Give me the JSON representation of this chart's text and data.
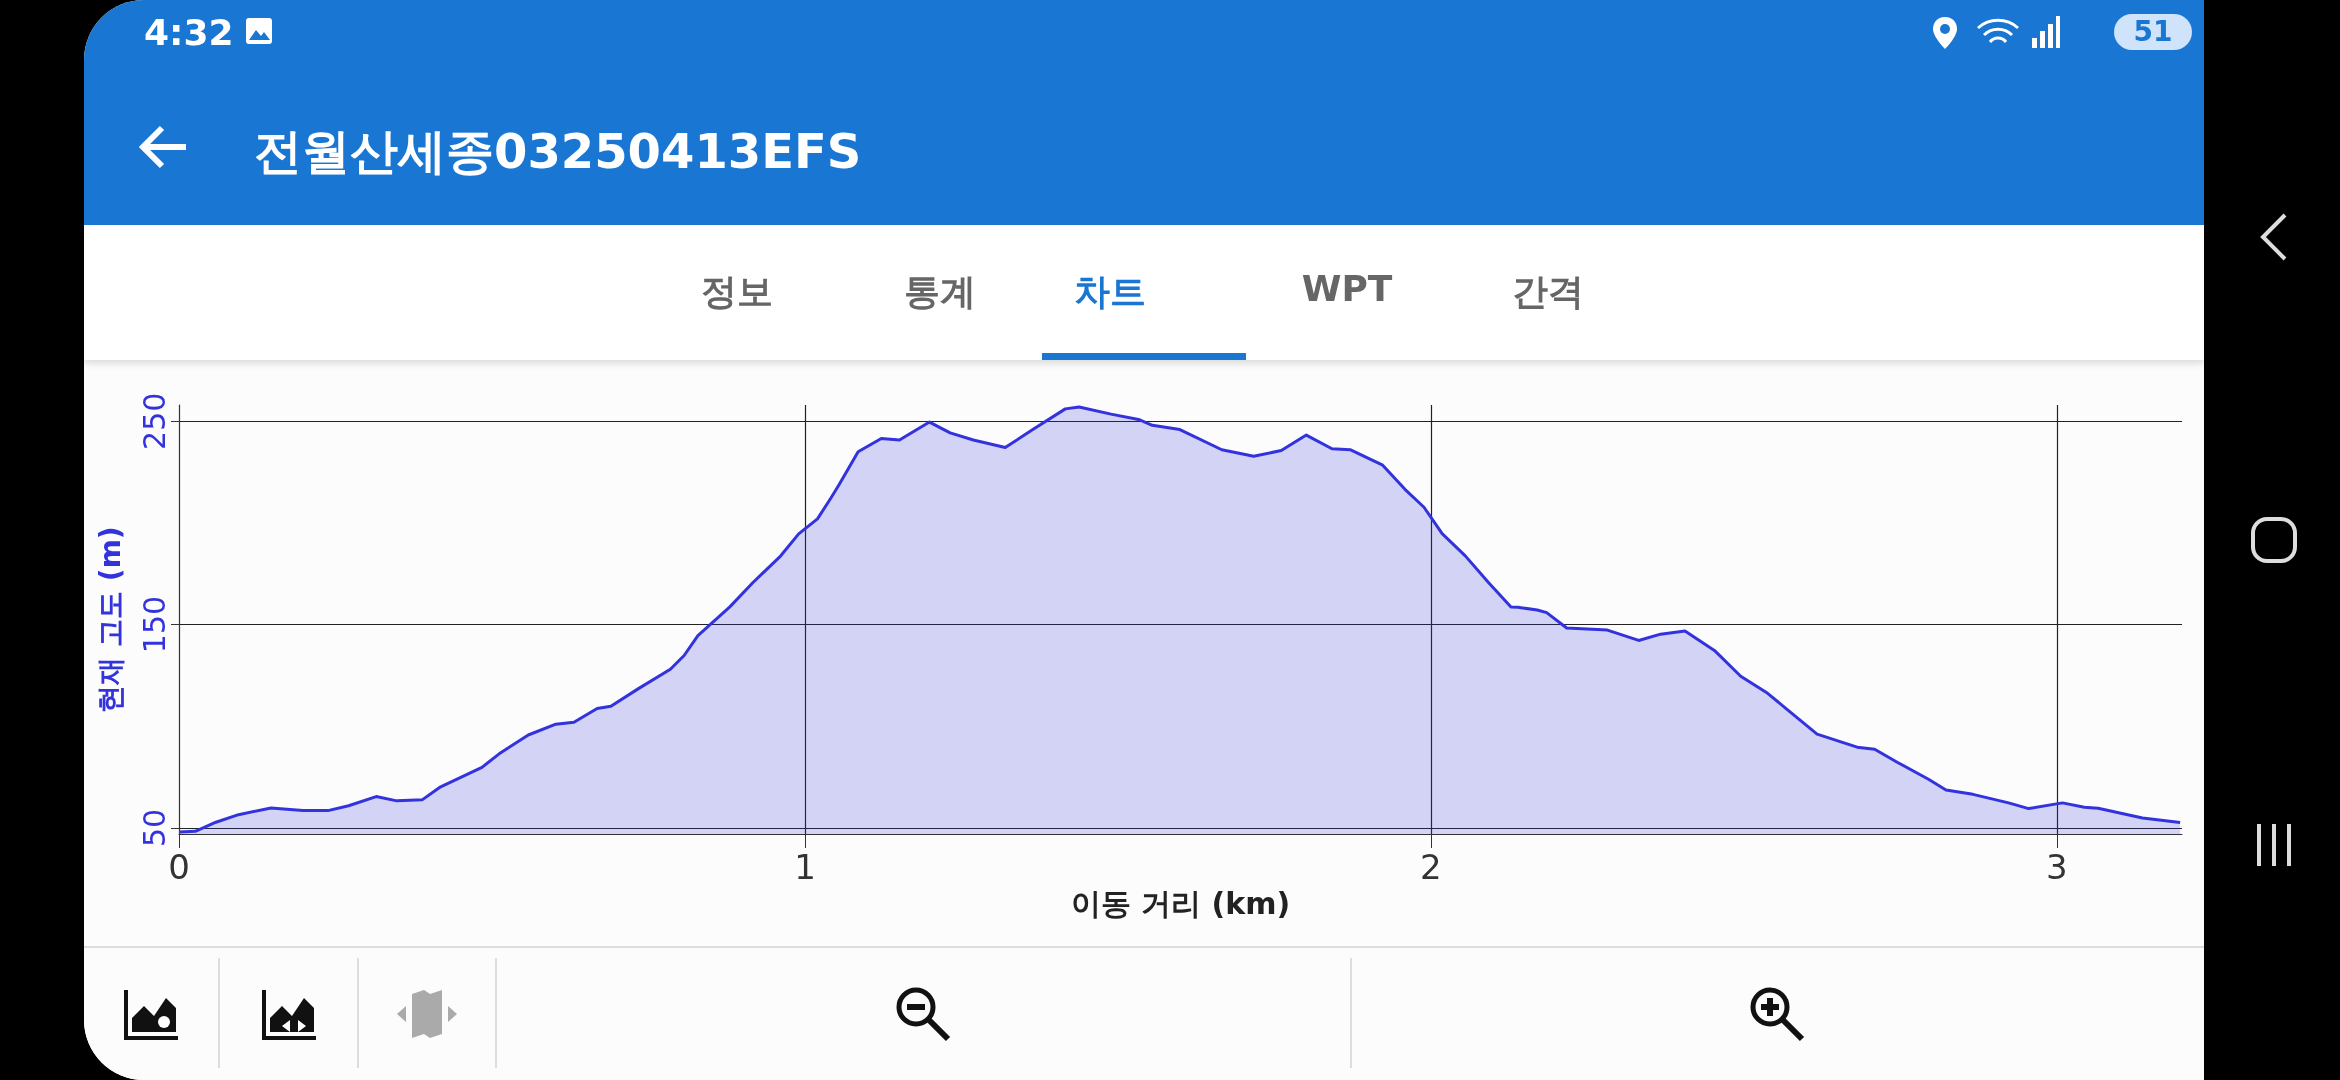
{
  "chart_data": {
    "type": "area",
    "title": "전월산세종03250413EFS",
    "annotations": [
      "4:32",
      "51",
      "정보",
      "통계",
      "차트",
      "WPT",
      "간격"
    ],
    "xlabel": "이동 거리 (km)",
    "ylabel": "현재 고도 (m)",
    "xlim": [
      0,
      3.2
    ],
    "xticks": [
      0,
      1,
      2,
      3
    ],
    "ylim": [
      47,
      258
    ],
    "yticks": [
      50,
      150,
      250
    ],
    "grid": true,
    "series": [
      {
        "color": "#3333dd",
        "x": [
          0,
          0.026,
          0.059,
          0.095,
          0.147,
          0.198,
          0.238,
          0.271,
          0.315,
          0.348,
          0.389,
          0.418,
          0.484,
          0.514,
          0.558,
          0.602,
          0.631,
          0.668,
          0.69,
          0.734,
          0.785,
          0.807,
          0.829,
          0.88,
          0.917,
          0.961,
          0.99,
          1.02,
          1.041,
          1.054,
          1.085,
          1.122,
          1.151,
          1.199,
          1.232,
          1.269,
          1.32,
          1.364,
          1.416,
          1.438,
          1.489,
          1.533,
          1.555,
          1.599,
          1.666,
          1.717,
          1.761,
          1.801,
          1.842,
          1.871,
          1.923,
          1.959,
          1.989,
          2.018,
          2.055,
          2.092,
          2.128,
          2.139,
          2.17,
          2.185,
          2.217,
          2.282,
          2.332,
          2.367,
          2.406,
          2.453,
          2.495,
          2.538,
          2.567,
          2.617,
          2.681,
          2.709,
          2.745,
          2.795,
          2.823,
          2.866,
          2.923,
          2.955,
          3.009,
          3.044,
          3.066,
          3.137,
          3.197
        ],
        "values": [
          48,
          48.3,
          52.8,
          56.5,
          59.8,
          58.5,
          58.5,
          60.9,
          65.4,
          63.3,
          63.9,
          70.2,
          79.8,
          87,
          95.7,
          101,
          102,
          108.7,
          109.8,
          118.5,
          128,
          134.8,
          144.6,
          158.7,
          170.7,
          183.7,
          194.6,
          202,
          212,
          218.5,
          235,
          241.5,
          240.8,
          249.6,
          244.3,
          240.8,
          237.1,
          245.9,
          256.1,
          257,
          253.5,
          250.9,
          248,
          245.9,
          236,
          232.8,
          235.6,
          243.2,
          236.5,
          236,
          228.4,
          216.4,
          207.7,
          194.7,
          183.8,
          170.7,
          158.7,
          158.5,
          157.2,
          155.9,
          148.3,
          147.3,
          142.2,
          145.3,
          146.8,
          137.3,
          124.6,
          116.2,
          108.8,
          96.1,
          89.7,
          88.7,
          82.3,
          73.9,
          68.6,
          66.5,
          62.3,
          59.5,
          62.3,
          60.2,
          59.7,
          54.9,
          52.7
        ]
      }
    ]
  }
}
